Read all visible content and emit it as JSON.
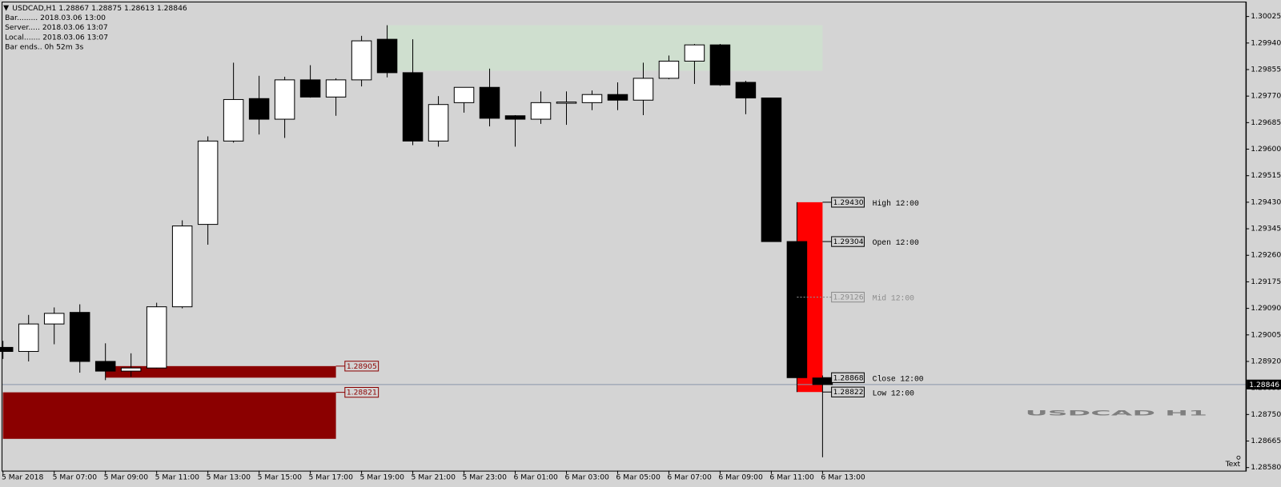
{
  "chart_data": {
    "type": "candlestick",
    "symbol": "USDCAD,H1",
    "info": [
      "Bar......... 2018.03.06 13:00",
      "Server..... 2018.03.06 13:07",
      "Local....... 2018.03.06 13:07",
      "Bar ends.. 0h 52m 3s"
    ],
    "categories": [
      "5 Mar 2018",
      null,
      "5 Mar 07:00",
      null,
      "5 Mar 09:00",
      null,
      "5 Mar 11:00",
      null,
      "5 Mar 13:00",
      null,
      "5 Mar 15:00",
      null,
      "5 Mar 17:00",
      null,
      "5 Mar 19:00",
      null,
      "5 Mar 21:00",
      null,
      "5 Mar 23:00",
      null,
      "6 Mar 01:00",
      null,
      "6 Mar 03:00",
      null,
      "6 Mar 05:00",
      null,
      "6 Mar 07:00",
      null,
      "6 Mar 09:00",
      null,
      "6 Mar 11:00",
      null,
      "6 Mar 13:00"
    ],
    "open": [
      1.28965,
      1.28952,
      1.2904,
      1.29077,
      1.2892,
      1.28889,
      1.28899,
      1.29095,
      1.29359,
      1.29626,
      1.29762,
      1.29696,
      1.29822,
      1.29767,
      1.29822,
      1.29952,
      1.29845,
      1.29626,
      1.29749,
      1.29798,
      1.29707,
      1.29696,
      1.29749,
      1.29749,
      1.29775,
      1.29757,
      1.29827,
      1.29882,
      1.29934,
      1.29814,
      1.29764,
      1.29304,
      1.28867
    ],
    "high": [
      1.28986,
      1.29069,
      1.29093,
      1.29103,
      1.28978,
      1.28946,
      1.29108,
      1.29372,
      1.29641,
      1.29877,
      1.29835,
      1.29832,
      1.29869,
      1.29827,
      1.29963,
      1.29997,
      1.29952,
      1.2977,
      1.29798,
      1.29858,
      1.29709,
      1.29785,
      1.29785,
      1.29788,
      1.29814,
      1.29877,
      1.299,
      1.29937,
      1.29937,
      1.29819,
      1.29764,
      1.2943,
      1.28875
    ],
    "low": [
      1.28928,
      1.2892,
      1.28975,
      1.28884,
      1.2886,
      1.28871,
      1.28897,
      1.2909,
      1.29294,
      1.29621,
      1.29647,
      1.29636,
      1.29765,
      1.29707,
      1.29801,
      1.2983,
      1.29613,
      1.29608,
      1.29717,
      1.29673,
      1.29608,
      1.29681,
      1.29678,
      1.29725,
      1.29725,
      1.29709,
      1.29824,
      1.29809,
      1.29803,
      1.29712,
      1.29304,
      1.28822,
      1.28613
    ],
    "close": [
      1.28952,
      1.2904,
      1.29074,
      1.2892,
      1.28889,
      1.28899,
      1.29095,
      1.29354,
      1.29626,
      1.29759,
      1.29696,
      1.29822,
      1.29767,
      1.29822,
      1.29947,
      1.29845,
      1.29626,
      1.29743,
      1.29798,
      1.29699,
      1.29696,
      1.29749,
      1.29751,
      1.29775,
      1.29757,
      1.29827,
      1.29882,
      1.29934,
      1.29806,
      1.29764,
      1.29304,
      1.28868,
      1.28846
    ],
    "bull_color": "#ffffff",
    "bear_color": "#000000",
    "ylim": [
      1.2857,
      1.3007
    ],
    "yticks": [
      {
        "value": 1.30025,
        "label": "1.30025"
      },
      {
        "value": 1.2994,
        "label": "1.29940"
      },
      {
        "value": 1.29855,
        "label": "1.29855"
      },
      {
        "value": 1.2977,
        "label": "1.29770"
      },
      {
        "value": 1.29685,
        "label": "1.29685"
      },
      {
        "value": 1.296,
        "label": "1.29600"
      },
      {
        "value": 1.29515,
        "label": "1.29515"
      },
      {
        "value": 1.2943,
        "label": "1.29430"
      },
      {
        "value": 1.29345,
        "label": "1.29345"
      },
      {
        "value": 1.2926,
        "label": "1.29260"
      },
      {
        "value": 1.29175,
        "label": "1.29175"
      },
      {
        "value": 1.2909,
        "label": "1.29090"
      },
      {
        "value": 1.29005,
        "label": "1.29005"
      },
      {
        "value": 1.2892,
        "label": "1.28920"
      },
      {
        "value": 1.28835,
        "label": "1.28835"
      },
      {
        "value": 1.2875,
        "label": "1.28750"
      },
      {
        "value": 1.28665,
        "label": "1.28665"
      },
      {
        "value": 1.2858,
        "label": "1.28580"
      }
    ],
    "zones": [
      {
        "top": 1.29997,
        "bottom": 1.29851,
        "from": 15,
        "to": 32,
        "color": "#cfdfcf"
      },
      {
        "top": 1.28905,
        "bottom": 1.28868,
        "from": 4,
        "to": 13,
        "color": "#8b0000",
        "label": "1.28905"
      },
      {
        "top": 1.28821,
        "bottom": 1.28672,
        "from": 0,
        "to": 13,
        "color": "#8b0000",
        "label": "1.28821"
      }
    ],
    "range_box": {
      "from": 31,
      "to": 32,
      "color": "#ff0000"
    },
    "levels": [
      {
        "value": 1.2943,
        "label": "1.29430",
        "name": "High 12:00",
        "color": "#000000"
      },
      {
        "value": 1.29304,
        "label": "1.29304",
        "name": "Open 12:00",
        "color": "#000000"
      },
      {
        "value": 1.29126,
        "label": "1.29126",
        "name": "Mid 12:00",
        "color": "#8c8c8c"
      },
      {
        "value": 1.28868,
        "label": "1.28868",
        "name": "Close 12:00",
        "color": "#000000"
      },
      {
        "value": 1.28822,
        "label": "1.28822",
        "name": "Low 12:00",
        "color": "#000000"
      }
    ],
    "watermark": "USDCAD H1",
    "text_object": "Text"
  }
}
